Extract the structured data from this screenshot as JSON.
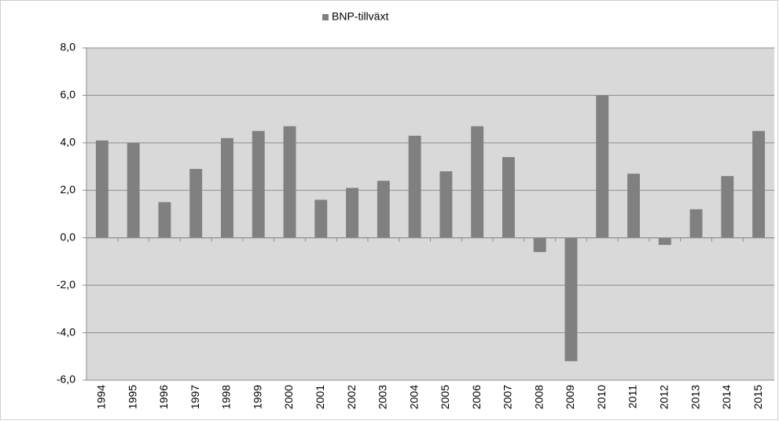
{
  "chart_data": {
    "type": "bar",
    "categories": [
      "1994",
      "1995",
      "1996",
      "1997",
      "1998",
      "1999",
      "2000",
      "2001",
      "2002",
      "2003",
      "2004",
      "2005",
      "2006",
      "2007",
      "2008",
      "2009",
      "2010",
      "2011",
      "2012",
      "2013",
      "2014",
      "2015"
    ],
    "series": [
      {
        "name": "BNP-tillväxt",
        "color": "#808080",
        "values": [
          4.1,
          4.0,
          1.5,
          2.9,
          4.2,
          4.5,
          4.7,
          1.6,
          2.1,
          2.4,
          4.3,
          2.8,
          4.7,
          3.4,
          -0.6,
          -5.2,
          6.0,
          2.7,
          -0.3,
          1.2,
          2.6,
          4.5
        ]
      }
    ],
    "ylim": [
      -6,
      8
    ],
    "yticks": [
      {
        "value": -6,
        "label": "-6,0"
      },
      {
        "value": -4,
        "label": "-4,0"
      },
      {
        "value": -2,
        "label": "-2,0"
      },
      {
        "value": 0,
        "label": "0,0"
      },
      {
        "value": 2,
        "label": "2,0"
      },
      {
        "value": 4,
        "label": "4,0"
      },
      {
        "value": 6,
        "label": "6,0"
      },
      {
        "value": 8,
        "label": "8,0"
      }
    ],
    "grid": true,
    "legend": "top"
  }
}
